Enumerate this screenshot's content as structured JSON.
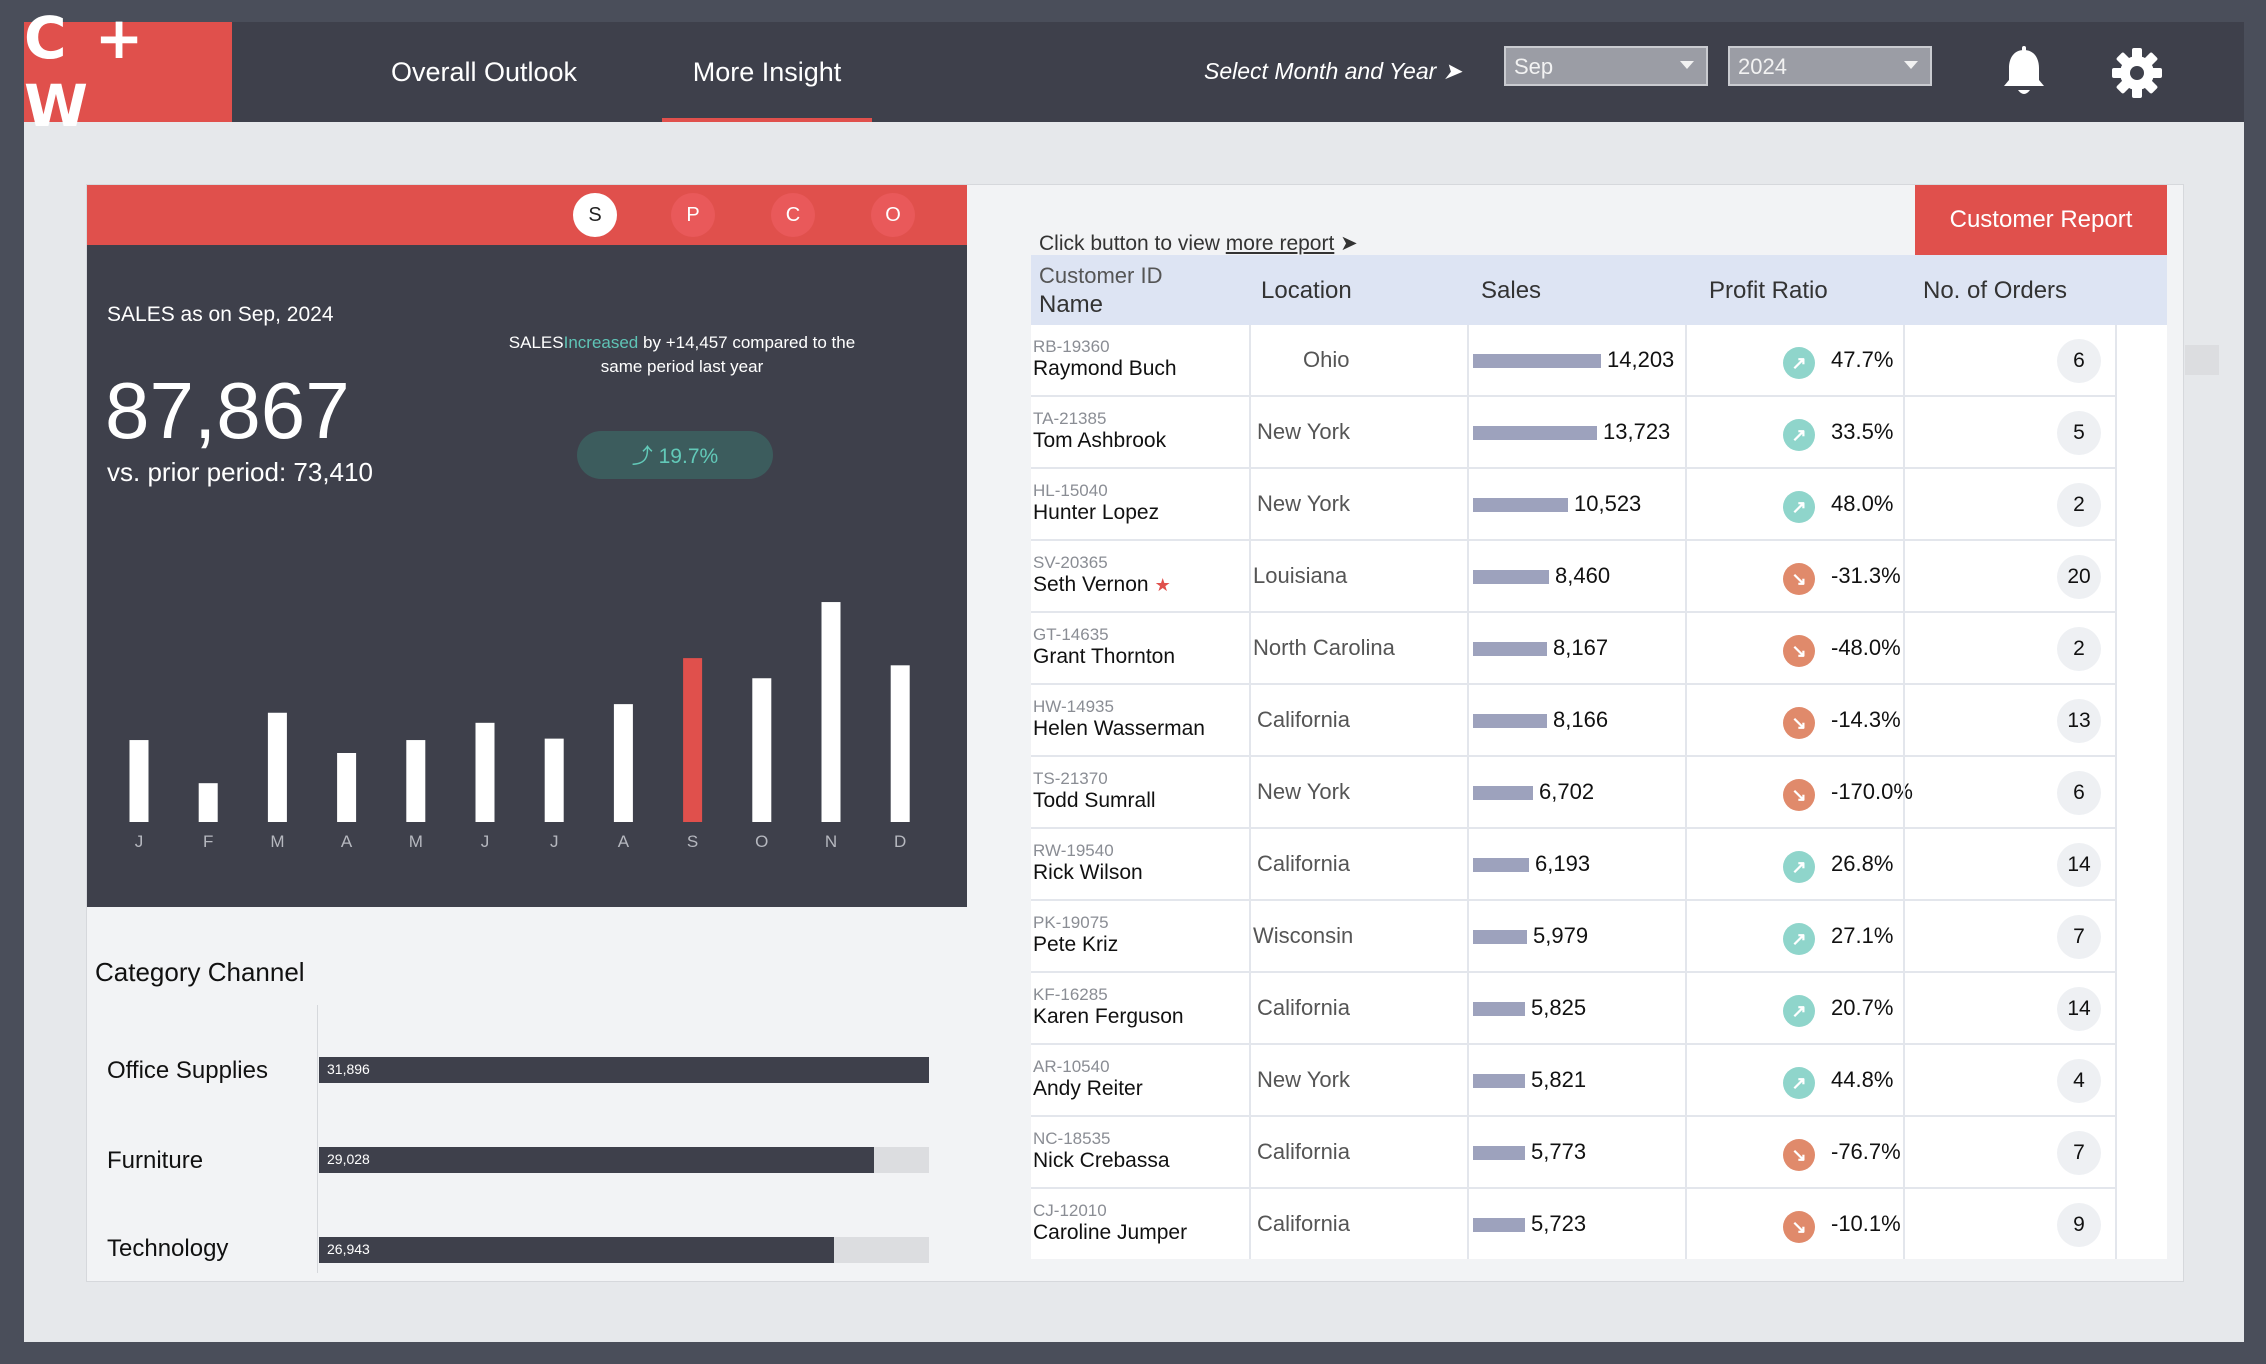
{
  "header": {
    "logo": "C + W",
    "tabs": [
      {
        "label": "Overall Outlook"
      },
      {
        "label": "More Insight"
      }
    ],
    "select_prompt": "Select Month and Year ➤",
    "month": "Sep",
    "year": "2024",
    "accent": "#e0504c"
  },
  "kpi": {
    "pills": [
      "S",
      "P",
      "C",
      "O"
    ],
    "active_pill": "S",
    "label": "SALES as on Sep, 2024",
    "value": "87,867",
    "prior": "vs. prior period: 73,410",
    "compare_prefix": "SALES",
    "compare_status": "Increased",
    "compare_rest": "by +14,457 compared to the same period last year",
    "change_pct": "⤴ 19.7%"
  },
  "chart_data": {
    "type": "bar",
    "categories": [
      "J",
      "F",
      "M",
      "A",
      "M",
      "J",
      "J",
      "A",
      "S",
      "O",
      "N",
      "D"
    ],
    "values": [
      57,
      27,
      76,
      48,
      57,
      69,
      58,
      82,
      114,
      100,
      153,
      109
    ],
    "highlight_index": 8,
    "highlight_color": "#e0504c",
    "bar_color": "#ffffff",
    "ylim": [
      0,
      160
    ],
    "grid": false
  },
  "category_channel": {
    "title": "Category Channel",
    "items": [
      {
        "label": "Office Supplies",
        "value": 31896,
        "display": "31,896"
      },
      {
        "label": "Furniture",
        "value": 29028,
        "display": "29,028"
      },
      {
        "label": "Technology",
        "value": 26943,
        "display": "26,943"
      }
    ],
    "max": 31896
  },
  "report": {
    "prompt_prefix": "Click button to view",
    "prompt_link": "more report",
    "prompt_arrow": "➤",
    "button": "Customer Report"
  },
  "table": {
    "headers": {
      "customer_id": "Customer ID",
      "name": "Name",
      "location": "Location",
      "sales": "Sales",
      "profit_ratio": "Profit Ratio",
      "orders": "No. of Orders"
    },
    "max_sales": 14203,
    "rows": [
      {
        "id": "RB-19360",
        "name": "Raymond Buch",
        "star": "",
        "location": "Ohio",
        "sales": 14203,
        "sales_display": "14,203",
        "trend": "up",
        "profit": "47.7%",
        "orders": "6"
      },
      {
        "id": "TA-21385",
        "name": "Tom Ashbrook",
        "star": "",
        "location": "New York",
        "sales": 13723,
        "sales_display": "13,723",
        "trend": "up",
        "profit": "33.5%",
        "orders": "5"
      },
      {
        "id": "HL-15040",
        "name": "Hunter Lopez",
        "star": "",
        "location": "New York",
        "sales": 10523,
        "sales_display": "10,523",
        "trend": "up",
        "profit": "48.0%",
        "orders": "2"
      },
      {
        "id": "SV-20365",
        "name": "Seth Vernon",
        "star": "★",
        "location": "Louisiana",
        "sales": 8460,
        "sales_display": "8,460",
        "trend": "down",
        "profit": "-31.3%",
        "orders": "20"
      },
      {
        "id": "GT-14635",
        "name": "Grant Thornton",
        "star": "",
        "location": "North Carolina",
        "sales": 8167,
        "sales_display": "8,167",
        "trend": "down",
        "profit": "-48.0%",
        "orders": "2"
      },
      {
        "id": "HW-14935",
        "name": "Helen Wasserman",
        "star": "",
        "location": "California",
        "sales": 8166,
        "sales_display": "8,166",
        "trend": "down",
        "profit": "-14.3%",
        "orders": "13"
      },
      {
        "id": "TS-21370",
        "name": "Todd Sumrall",
        "star": "",
        "location": "New York",
        "sales": 6702,
        "sales_display": "6,702",
        "trend": "down",
        "profit": "-170.0%",
        "orders": "6"
      },
      {
        "id": "RW-19540",
        "name": "Rick Wilson",
        "star": "",
        "location": "California",
        "sales": 6193,
        "sales_display": "6,193",
        "trend": "up",
        "profit": "26.8%",
        "orders": "14"
      },
      {
        "id": "PK-19075",
        "name": "Pete Kriz",
        "star": "",
        "location": "Wisconsin",
        "sales": 5979,
        "sales_display": "5,979",
        "trend": "up",
        "profit": "27.1%",
        "orders": "7"
      },
      {
        "id": "KF-16285",
        "name": "Karen Ferguson",
        "star": "",
        "location": "California",
        "sales": 5825,
        "sales_display": "5,825",
        "trend": "up",
        "profit": "20.7%",
        "orders": "14"
      },
      {
        "id": "AR-10540",
        "name": "Andy Reiter",
        "star": "",
        "location": "New York",
        "sales": 5821,
        "sales_display": "5,821",
        "trend": "up",
        "profit": "44.8%",
        "orders": "4"
      },
      {
        "id": "NC-18535",
        "name": "Nick Crebassa",
        "star": "",
        "location": "California",
        "sales": 5773,
        "sales_display": "5,773",
        "trend": "down",
        "profit": "-76.7%",
        "orders": "7"
      },
      {
        "id": "CJ-12010",
        "name": "Caroline Jumper",
        "star": "",
        "location": "California",
        "sales": 5723,
        "sales_display": "5,723",
        "trend": "down",
        "profit": "-10.1%",
        "orders": "9"
      }
    ]
  }
}
